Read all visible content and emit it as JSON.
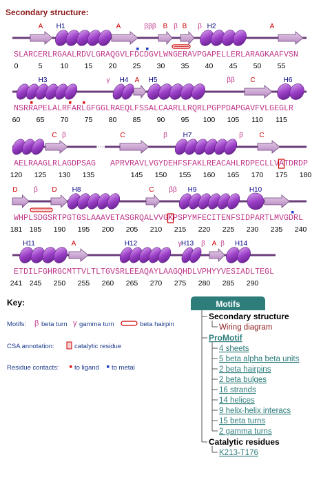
{
  "title": "Secondary structure:",
  "rows": [
    {
      "sequence": [
        "SLARCERLRGAALRDVLGRAQGVLFDCDGVLWNGERAVPGAPELLERLARAGKAAFVSN"
      ],
      "numbers": [
        0,
        5,
        10,
        15,
        20,
        25,
        30,
        35,
        40,
        45,
        50,
        55
      ],
      "labels": [
        "A",
        "H1",
        "A",
        "βββ",
        "B",
        "β",
        "B",
        "β",
        "H2",
        "A"
      ]
    },
    {
      "sequence": [
        "NSRRAPELALRFARLGFGGLRAEQLFSSALCAARLLRQRLPGPPDAPGAVFVLGEGLR"
      ],
      "numbers": [
        60,
        65,
        70,
        75,
        80,
        85,
        90,
        95,
        100,
        105,
        110,
        115
      ],
      "labels": [
        "H3",
        "γ",
        "H4",
        "A",
        "H5",
        "ββ",
        "C",
        "H6"
      ]
    },
    {
      "sequence": [
        "AELRAAGLRLAGDPSAG",
        "APRVRAVLVGYDEHFSFAKLREACAHLRDPECLLVATDRDP"
      ],
      "numbers": [
        120,
        125,
        130,
        135,
        145,
        150,
        155,
        160,
        165,
        170,
        175,
        180
      ],
      "labels": [
        "C",
        "β",
        "C",
        "β",
        "H7",
        "β",
        "C"
      ]
    },
    {
      "sequence": [
        "WHPLSDGSRTPGTGSLAAAVETASGRQALVVGKPSPYMFECITENFSIDPARTLMVGDRL"
      ],
      "numbers": [
        181,
        185,
        190,
        195,
        200,
        205,
        210,
        215,
        220,
        225,
        230,
        235,
        240
      ],
      "labels": [
        "D",
        "β",
        "D",
        "H8",
        "C",
        "ββ",
        "H9",
        "H10"
      ]
    },
    {
      "sequence": [
        "ETDILFGHRGCMTTVLTLTGVSRLEEAQAYLAAGQHDLVPHYYVESIADLTEGL"
      ],
      "numbers": [
        241,
        245,
        250,
        255,
        260,
        265,
        270,
        275,
        280,
        285,
        290
      ],
      "labels": [
        "H11",
        "A",
        "H12",
        "γ",
        "H13",
        "β",
        "A",
        "β",
        "H14"
      ]
    }
  ],
  "key": {
    "title": "Key:",
    "motifs_label": "Motifs:",
    "beta_symbol": "β",
    "beta_turn": "beta turn",
    "gamma_symbol": "γ",
    "gamma_turn": "gamma turn",
    "beta_hairpin": "beta hairpin",
    "csa_label": "CSA annotation:",
    "csa_item": "catalytic residue",
    "contacts_label": "Residue contacts:",
    "to_ligand": "to ligand",
    "to_metal": "to metal"
  },
  "panel": {
    "tab": "Motifs",
    "sections": [
      {
        "title": "Secondary structure",
        "items": [
          "Wiring diagram"
        ]
      },
      {
        "title": "ProMotif",
        "items": [
          "4 sheets",
          "5 beta alpha beta units",
          "2 beta hairpins",
          "2 beta bulges",
          "16 strands",
          "14 helices",
          "9 helix-helix interacs",
          "15 beta turns",
          "2 gamma turns"
        ]
      },
      {
        "title": "Catalytic residues",
        "items": [
          "K213-T176"
        ]
      }
    ]
  }
}
